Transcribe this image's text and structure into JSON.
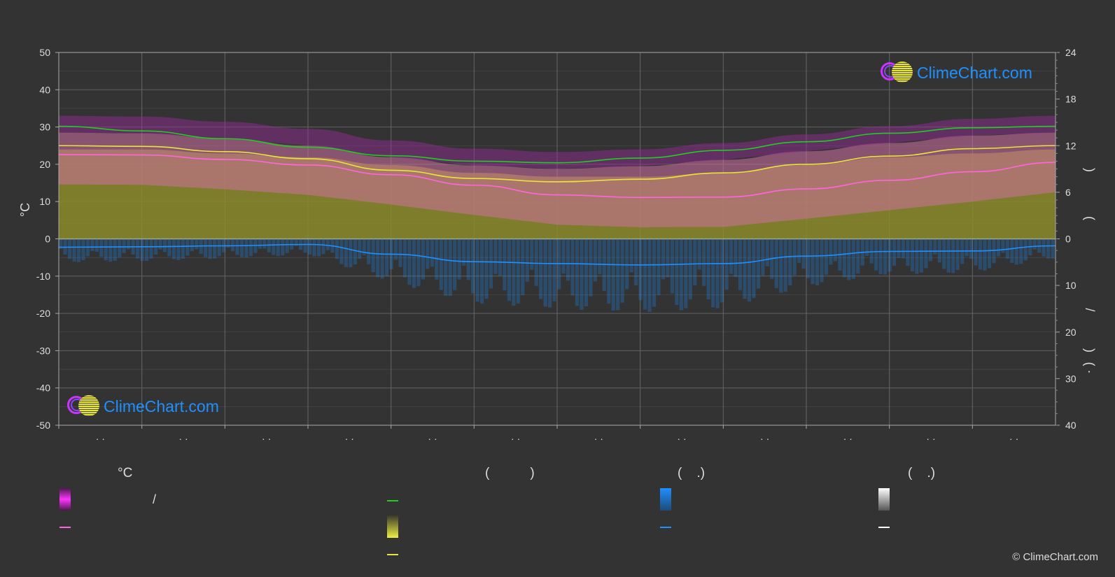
{
  "chart_data": {
    "type": "line",
    "left_axis": {
      "label": "°C",
      "ticks": [
        50,
        40,
        30,
        20,
        10,
        0,
        -10,
        -20,
        -30,
        -40,
        -50
      ],
      "range": [
        -50,
        50
      ]
    },
    "right_axis_top": {
      "ticks": [
        24,
        18,
        12,
        6,
        0
      ],
      "range": [
        0,
        24
      ],
      "label_fragments": [
        ")",
        "("
      ]
    },
    "right_axis_bottom": {
      "ticks": [
        0,
        10,
        20,
        30,
        40
      ],
      "range": [
        0,
        40
      ],
      "label_fragments": [
        "/",
        ")",
        "(  ·"
      ]
    },
    "x_labels": [
      "· ·",
      "· ·",
      "· ·",
      "· ·",
      "· ·",
      "· ·",
      "· ·",
      "· ·",
      "· ·",
      "· ·",
      "· ·",
      "· ·"
    ],
    "grid": true,
    "series": [
      {
        "key": "daylight",
        "color": "#22cc22",
        "values": [
          14.5,
          13.9,
          12.9,
          11.8,
          10.7,
          10.0,
          9.8,
          10.4,
          11.4,
          12.5,
          13.6,
          14.3,
          14.5
        ]
      },
      {
        "key": "max_temp",
        "color": "#e7e53a",
        "values": [
          25.0,
          24.8,
          23.4,
          21.5,
          18.4,
          16.2,
          15.3,
          16.0,
          17.7,
          20.0,
          22.2,
          24.2,
          25.0
        ]
      },
      {
        "key": "mean_temp",
        "color": "#ff66dd",
        "values": [
          22.6,
          22.5,
          21.3,
          19.8,
          17.2,
          14.4,
          11.8,
          11.1,
          11.2,
          13.4,
          15.7,
          18.0,
          20.5
        ]
      },
      {
        "key": "precip",
        "color": "#1e90ff",
        "values": [
          1.8,
          1.7,
          1.5,
          1.2,
          3.3,
          4.9,
          5.3,
          5.6,
          5.3,
          3.7,
          2.7,
          2.6,
          1.5
        ]
      }
    ],
    "sunshine_mean_hours": [
      11.5,
      11.5,
      11.0,
      10.5,
      9.5,
      8.5,
      8.0,
      8.0,
      8.5,
      9.5,
      10.5,
      11.0,
      11.5
    ]
  },
  "legend": {
    "col1": {
      "header": "°C",
      "item1": "/",
      "item2": ""
    },
    "col2": {
      "header": "(           )",
      "item1": "",
      "item2": "",
      "item3": ""
    },
    "col3": {
      "header": "(    .)",
      "item1": "",
      "item2": ""
    },
    "col4": {
      "header": "(    .)",
      "item1": "",
      "item2": ""
    }
  },
  "colors": {
    "background": "#333333",
    "grid": "#666666",
    "daylight": "#22cc22",
    "sunshine": "#8b8b2a",
    "temp_band": "#d070a0",
    "max_band": "#9a2a9a",
    "precip": "#1e90ff",
    "snow": "#ffffff"
  },
  "logo_text": "ClimeChart.com",
  "copyright": "© ClimeChart.com"
}
